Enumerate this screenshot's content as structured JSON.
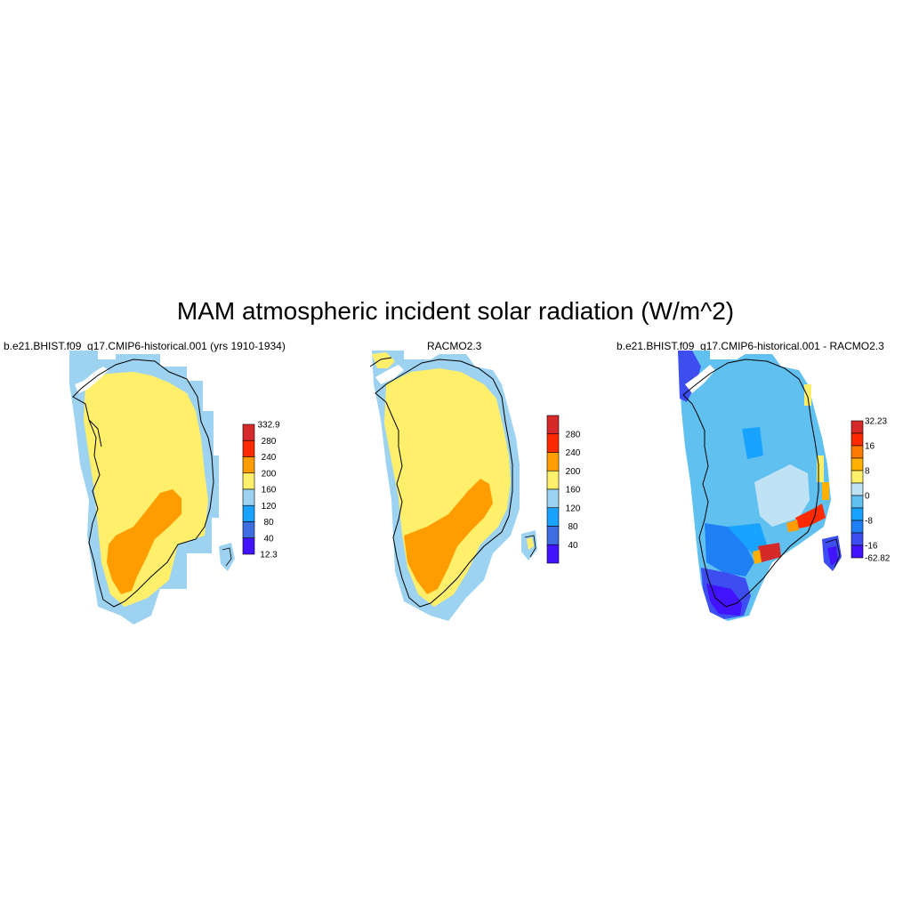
{
  "title": "MAM atmospheric incident solar radiation (W/m^2)",
  "panels": [
    {
      "title": "b.e21.BHIST.f09_g17.CMIP6-historical.001 (yrs 1910-1934)",
      "colorbar": {
        "labels": [
          "332.9",
          "280",
          "240",
          "200",
          "160",
          "120",
          "80",
          "40",
          "12.3"
        ],
        "colors": [
          "#d62a2a",
          "#ff2a00",
          "#ff9d00",
          "#ffef6a",
          "#9dd3f0",
          "#17a3ff",
          "#3d6de0",
          "#4213ff"
        ]
      }
    },
    {
      "title": "RACMO2.3",
      "colorbar": {
        "labels": [
          "280",
          "240",
          "200",
          "160",
          "120",
          "80",
          "40"
        ],
        "colors": [
          "#d62a2a",
          "#ff2a00",
          "#ff9d00",
          "#ffef6a",
          "#9dd3f0",
          "#17a3ff",
          "#3d6de0",
          "#4213ff"
        ]
      }
    },
    {
      "title": "b.e21.BHIST.f09_g17.CMIP6-historical.001 - RACMO2.3",
      "colorbar": {
        "labels": [
          "32.23",
          "16",
          "8",
          "0",
          "-8",
          "-16",
          "-62.82"
        ],
        "colors": [
          "#d62a2a",
          "#ff2a00",
          "#ff7a00",
          "#ffb000",
          "#ffef6a",
          "#bfe3f5",
          "#60c0f0",
          "#17a3ff",
          "#1f7ff5",
          "#3d4df0",
          "#4213ff"
        ]
      }
    }
  ],
  "legend_colors": {
    "yellow": "#ffef6a",
    "orange": "#ff9d00",
    "light_blue": "#9dd3f0",
    "pale_blue": "#bfe3f5",
    "mid_blue": "#60c0f0",
    "blue": "#17a3ff",
    "deep_blue": "#1f7ff5",
    "indigo": "#3d4df0",
    "violet": "#4213ff",
    "red": "#ff2a00",
    "dark_red": "#d62a2a"
  }
}
